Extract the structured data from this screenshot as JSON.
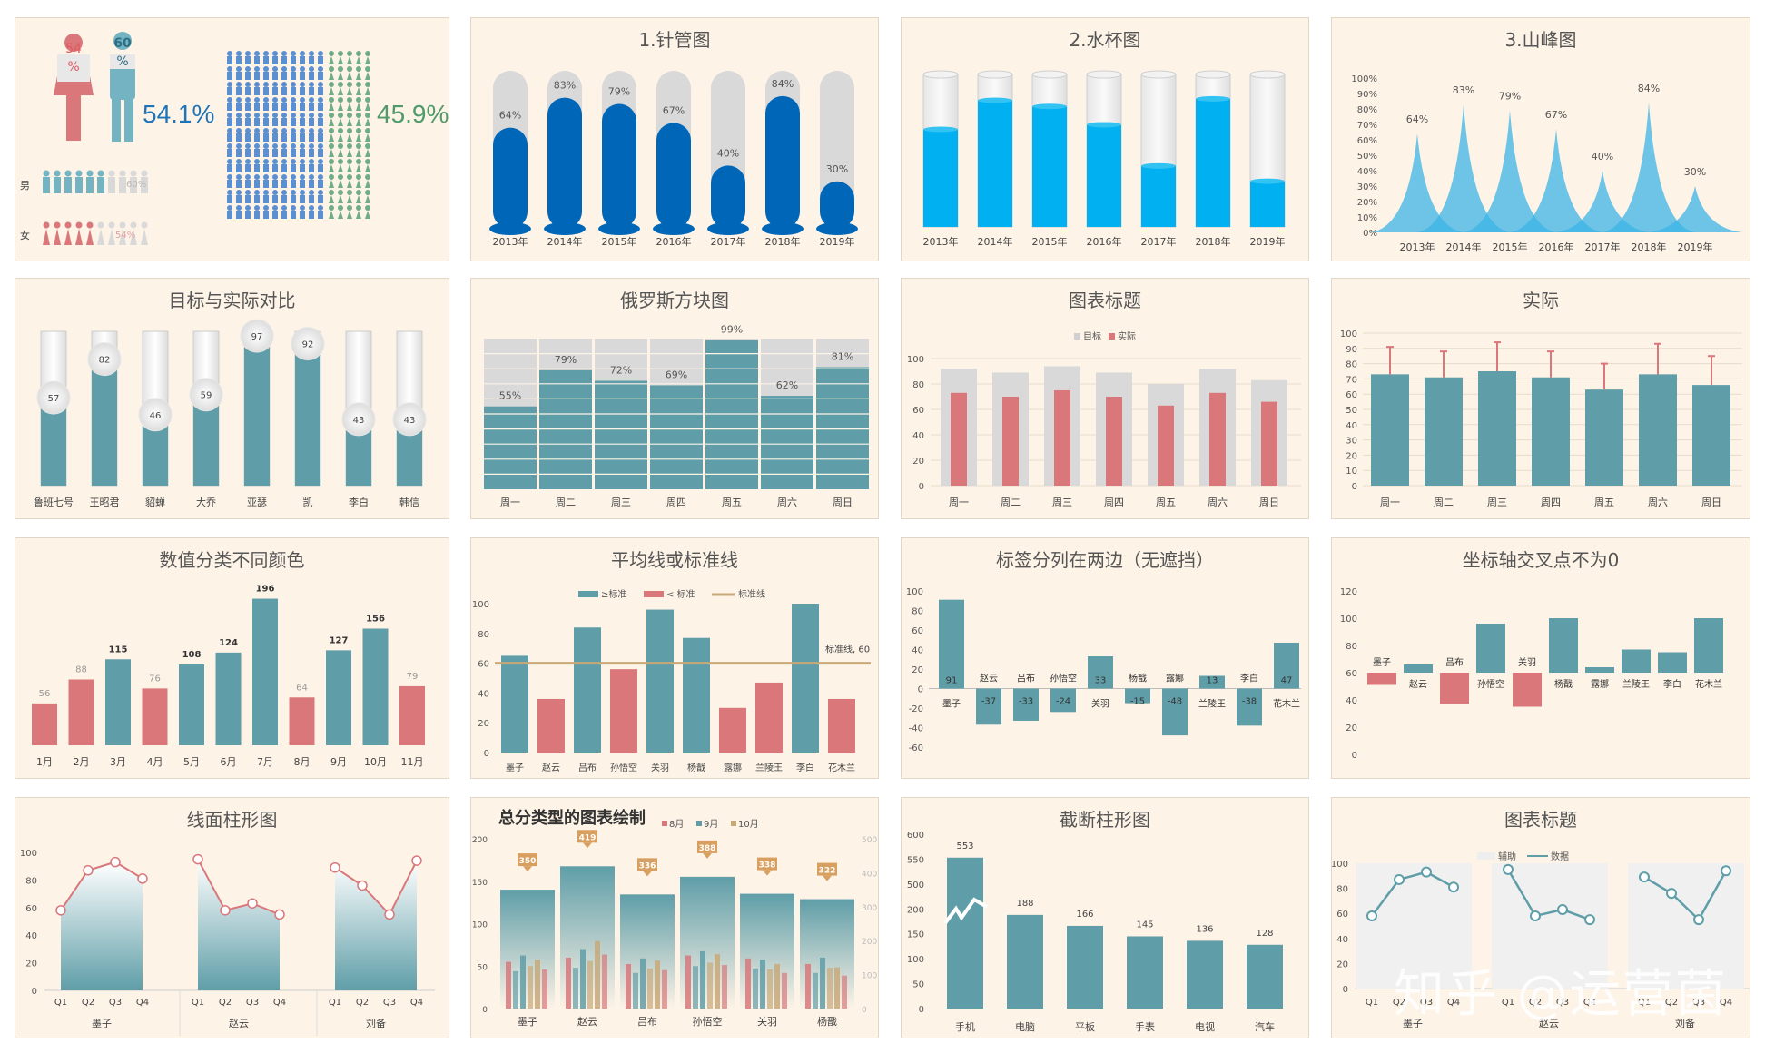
{
  "colors": {
    "bg": "#fdf3e7",
    "teal": "#5f9ea8",
    "red": "#d9777a",
    "blue": "#0067b8",
    "cyan": "#00b0f0",
    "gray": "#d9d9d9",
    "green": "#70ad86",
    "gold": "#c9a877"
  },
  "chart_data": [
    {
      "id": "gender",
      "type": "pictograph",
      "male_pct": "54.1%",
      "female_pct": "45.9%",
      "male_icon_label": "60\n%",
      "female_icon_label": "54\n%",
      "row_labels": [
        "男",
        "女"
      ],
      "row_values": [
        "60%",
        "54%"
      ]
    },
    {
      "id": "needle",
      "type": "bar",
      "title": "1.针管图",
      "categories": [
        "2013年",
        "2014年",
        "2015年",
        "2016年",
        "2017年",
        "2018年",
        "2019年"
      ],
      "values": [
        64,
        83,
        79,
        67,
        40,
        84,
        30
      ],
      "labels": [
        "64%",
        "83%",
        "79%",
        "67%",
        "40%",
        "84%",
        "30%"
      ]
    },
    {
      "id": "cup",
      "type": "bar",
      "title": "2.水杯图",
      "categories": [
        "2013年",
        "2014年",
        "2015年",
        "2016年",
        "2017年",
        "2018年",
        "2019年"
      ],
      "values": [
        64,
        83,
        79,
        67,
        40,
        84,
        30
      ]
    },
    {
      "id": "peak",
      "type": "area",
      "title": "3.山峰图",
      "categories": [
        "2013年",
        "2014年",
        "2015年",
        "2016年",
        "2017年",
        "2018年",
        "2019年"
      ],
      "values": [
        64,
        83,
        79,
        67,
        40,
        84,
        30
      ],
      "labels": [
        "64%",
        "83%",
        "79%",
        "67%",
        "40%",
        "84%",
        "30%"
      ],
      "yticks": [
        "100%",
        "90%",
        "80%",
        "70%",
        "60%",
        "50%",
        "40%",
        "30%",
        "20%",
        "10%",
        "0%"
      ]
    },
    {
      "id": "target",
      "type": "bar",
      "title": "目标与实际对比",
      "categories": [
        "鲁班七号",
        "王昭君",
        "貂蝉",
        "大乔",
        "亚瑟",
        "凯",
        "李白",
        "韩信"
      ],
      "values": [
        57,
        82,
        46,
        59,
        97,
        92,
        43,
        43
      ]
    },
    {
      "id": "tetris",
      "type": "bar",
      "title": "俄罗斯方块图",
      "categories": [
        "周一",
        "周二",
        "周三",
        "周四",
        "周五",
        "周六",
        "周日"
      ],
      "values": [
        55,
        79,
        72,
        69,
        99,
        62,
        81
      ],
      "labels": [
        "55%",
        "79%",
        "72%",
        "69%",
        "99%",
        "62%",
        "81%"
      ]
    },
    {
      "id": "overlap",
      "type": "bar",
      "title": "图表标题",
      "legend": [
        "目标",
        "实际"
      ],
      "categories": [
        "周一",
        "周二",
        "周三",
        "周四",
        "周五",
        "周六",
        "周日"
      ],
      "series": [
        {
          "name": "目标",
          "values": [
            92,
            89,
            94,
            89,
            80,
            92,
            83
          ]
        },
        {
          "name": "实际",
          "values": [
            73,
            70,
            75,
            70,
            63,
            73,
            66
          ]
        }
      ],
      "yticks": [
        "100",
        "80",
        "60",
        "40",
        "20",
        "0"
      ]
    },
    {
      "id": "actual",
      "type": "bar",
      "title": "实际",
      "categories": [
        "周一",
        "周二",
        "周三",
        "周四",
        "周五",
        "周六",
        "周日"
      ],
      "values": [
        73,
        71,
        75,
        71,
        63,
        73,
        66
      ],
      "errors": [
        91,
        88,
        94,
        88,
        80,
        93,
        85
      ],
      "yticks": [
        "100",
        "90",
        "80",
        "70",
        "60",
        "50",
        "40",
        "30",
        "20",
        "10",
        "0"
      ]
    },
    {
      "id": "colorcat",
      "type": "bar",
      "title": "数值分类不同颜色",
      "categories": [
        "1月",
        "2月",
        "3月",
        "4月",
        "5月",
        "6月",
        "7月",
        "8月",
        "9月",
        "10月",
        "11月"
      ],
      "values": [
        56,
        88,
        115,
        76,
        108,
        124,
        196,
        64,
        127,
        156,
        79
      ],
      "labels": [
        "56",
        "88",
        "115",
        "76",
        "108",
        "124",
        "196",
        "64",
        "127",
        "156",
        "79"
      ]
    },
    {
      "id": "avgline",
      "type": "bar",
      "title": "平均线或标准线",
      "legend": [
        "≥标准",
        "< 标准",
        "标准线"
      ],
      "categories": [
        "墨子",
        "赵云",
        "吕布",
        "孙悟空",
        "关羽",
        "杨戬",
        "露娜",
        "兰陵王",
        "李白",
        "花木兰"
      ],
      "values": [
        65,
        36,
        84,
        56,
        96,
        77,
        30,
        47,
        100,
        36
      ],
      "threshold": 60,
      "threshold_label": "标准线, 60",
      "yticks": [
        "100",
        "80",
        "60",
        "40",
        "20",
        "0"
      ]
    },
    {
      "id": "twoside",
      "type": "bar",
      "title": "标签分列在两边（无遮挡）",
      "categories": [
        "墨子",
        "赵云",
        "吕布",
        "孙悟空",
        "关羽",
        "杨戬",
        "露娜",
        "兰陵王",
        "李白",
        "花木兰"
      ],
      "values": [
        91,
        -37,
        -33,
        -24,
        33,
        -15,
        -48,
        13,
        -38,
        47
      ],
      "labels": [
        "91",
        "-37",
        "-33",
        "-24",
        "33",
        "-15",
        "-48",
        "13",
        "-38",
        "47"
      ],
      "yticks": [
        "100",
        "80",
        "60",
        "40",
        "20",
        "0",
        "-20",
        "-40",
        "-60"
      ]
    },
    {
      "id": "crossaxis",
      "type": "bar",
      "title": "坐标轴交叉点不为0",
      "categories": [
        "墨子",
        "赵云",
        "吕布",
        "孙悟空",
        "关羽",
        "杨戬",
        "露娜",
        "兰陵王",
        "李白",
        "花木兰"
      ],
      "values": [
        51,
        66,
        37,
        96,
        35,
        100,
        64,
        77,
        75,
        100
      ],
      "cross": 60,
      "yticks": [
        "120",
        "100",
        "80",
        "60",
        "40",
        "20",
        "0"
      ]
    },
    {
      "id": "linearea",
      "type": "area",
      "title": "线面柱形图",
      "groups": [
        "墨子",
        "赵云",
        "刘备"
      ],
      "quarters": [
        "Q1",
        "Q2",
        "Q3",
        "Q4"
      ],
      "series": [
        [
          58,
          87,
          93,
          81
        ],
        [
          95,
          58,
          63,
          55
        ],
        [
          89,
          76,
          55,
          94
        ]
      ],
      "yticks": [
        "100",
        "80",
        "60",
        "40",
        "20",
        "0"
      ]
    },
    {
      "id": "total",
      "type": "bar",
      "title": "总分类型的图表绘制",
      "legend": [
        "8月",
        "9月",
        "10月"
      ],
      "categories": [
        "墨子",
        "赵云",
        "吕布",
        "孙悟空",
        "关羽",
        "杨戬"
      ],
      "totals": [
        350,
        419,
        336,
        388,
        338,
        322
      ],
      "labels": [
        "350",
        "419",
        "336",
        "388",
        "338",
        "322"
      ],
      "series": [
        {
          "name": "8月",
          "values": [
            110,
            120,
            105,
            125,
            118,
            105
          ]
        },
        {
          "name": "9月",
          "values": [
            125,
            140,
            118,
            135,
            115,
            120
          ]
        },
        {
          "name": "10月",
          "values": [
            115,
            159,
            113,
            128,
            105,
            97
          ]
        }
      ],
      "left_ticks": [
        "200",
        "150",
        "100",
        "50",
        "0"
      ],
      "right_ticks": [
        "500",
        "400",
        "300",
        "200",
        "100",
        "0"
      ]
    },
    {
      "id": "broken",
      "type": "bar",
      "title": "截断柱形图",
      "categories": [
        "手机",
        "电脑",
        "平板",
        "手表",
        "电视",
        "汽车"
      ],
      "values": [
        553,
        188,
        166,
        145,
        136,
        128
      ],
      "labels": [
        "553",
        "188",
        "166",
        "145",
        "136",
        "128"
      ],
      "yticks": [
        "600",
        "550",
        "500",
        "200",
        "150",
        "100",
        "50",
        "0"
      ]
    },
    {
      "id": "lineassist",
      "type": "line",
      "title": "图表标题",
      "legend": [
        "辅助",
        "数据"
      ],
      "groups": [
        "墨子",
        "赵云",
        "刘备"
      ],
      "quarters": [
        "Q1",
        "Q2",
        "Q3",
        "Q4"
      ],
      "series": [
        [
          58,
          87,
          93,
          81
        ],
        [
          95,
          58,
          63,
          55
        ],
        [
          89,
          76,
          55,
          94
        ]
      ],
      "yticks": [
        "100",
        "80",
        "60",
        "40",
        "20",
        "0"
      ]
    }
  ],
  "watermark": "知乎 @运营菌"
}
